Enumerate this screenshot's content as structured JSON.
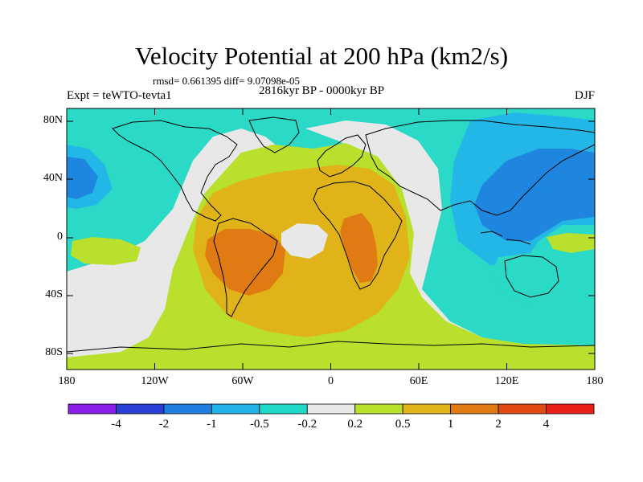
{
  "title": "Velocity Potential at 200 hPa (km2/s)",
  "stats": "rmsd= 0.661395 diff= 9.07098e-05",
  "period": "2816kyr BP - 0000kyr BP",
  "experiment": "Expt = teWTO-tevta1",
  "season": "DJF",
  "axes": {
    "y_ticks": [
      "80N",
      "40N",
      "0",
      "40S",
      "80S"
    ],
    "x_ticks": [
      "180",
      "120W",
      "60W",
      "0",
      "60E",
      "120E",
      "180"
    ]
  },
  "colorbar": {
    "labels": [
      "-4",
      "-2",
      "-1",
      "-0.5",
      "-0.2",
      "0.2",
      "0.5",
      "1",
      "2",
      "4"
    ],
    "colors": [
      "#8b1ee8",
      "#2a3fd6",
      "#1f7fe0",
      "#22b4e8",
      "#1ed8c8",
      "#e8e8e8",
      "#b7e02a",
      "#e0b41a",
      "#e07a12",
      "#e04a10",
      "#e82018"
    ]
  },
  "field_colors": {
    "neg_05_02": "#2ad9c6",
    "neg_1_05": "#23b7e8",
    "neg_2_1": "#1f86e0",
    "neutral": "#e8e8e8",
    "pos_02_05": "#b8e02c",
    "pos_05_1": "#e0b418",
    "pos_1_2": "#e07a12"
  }
}
